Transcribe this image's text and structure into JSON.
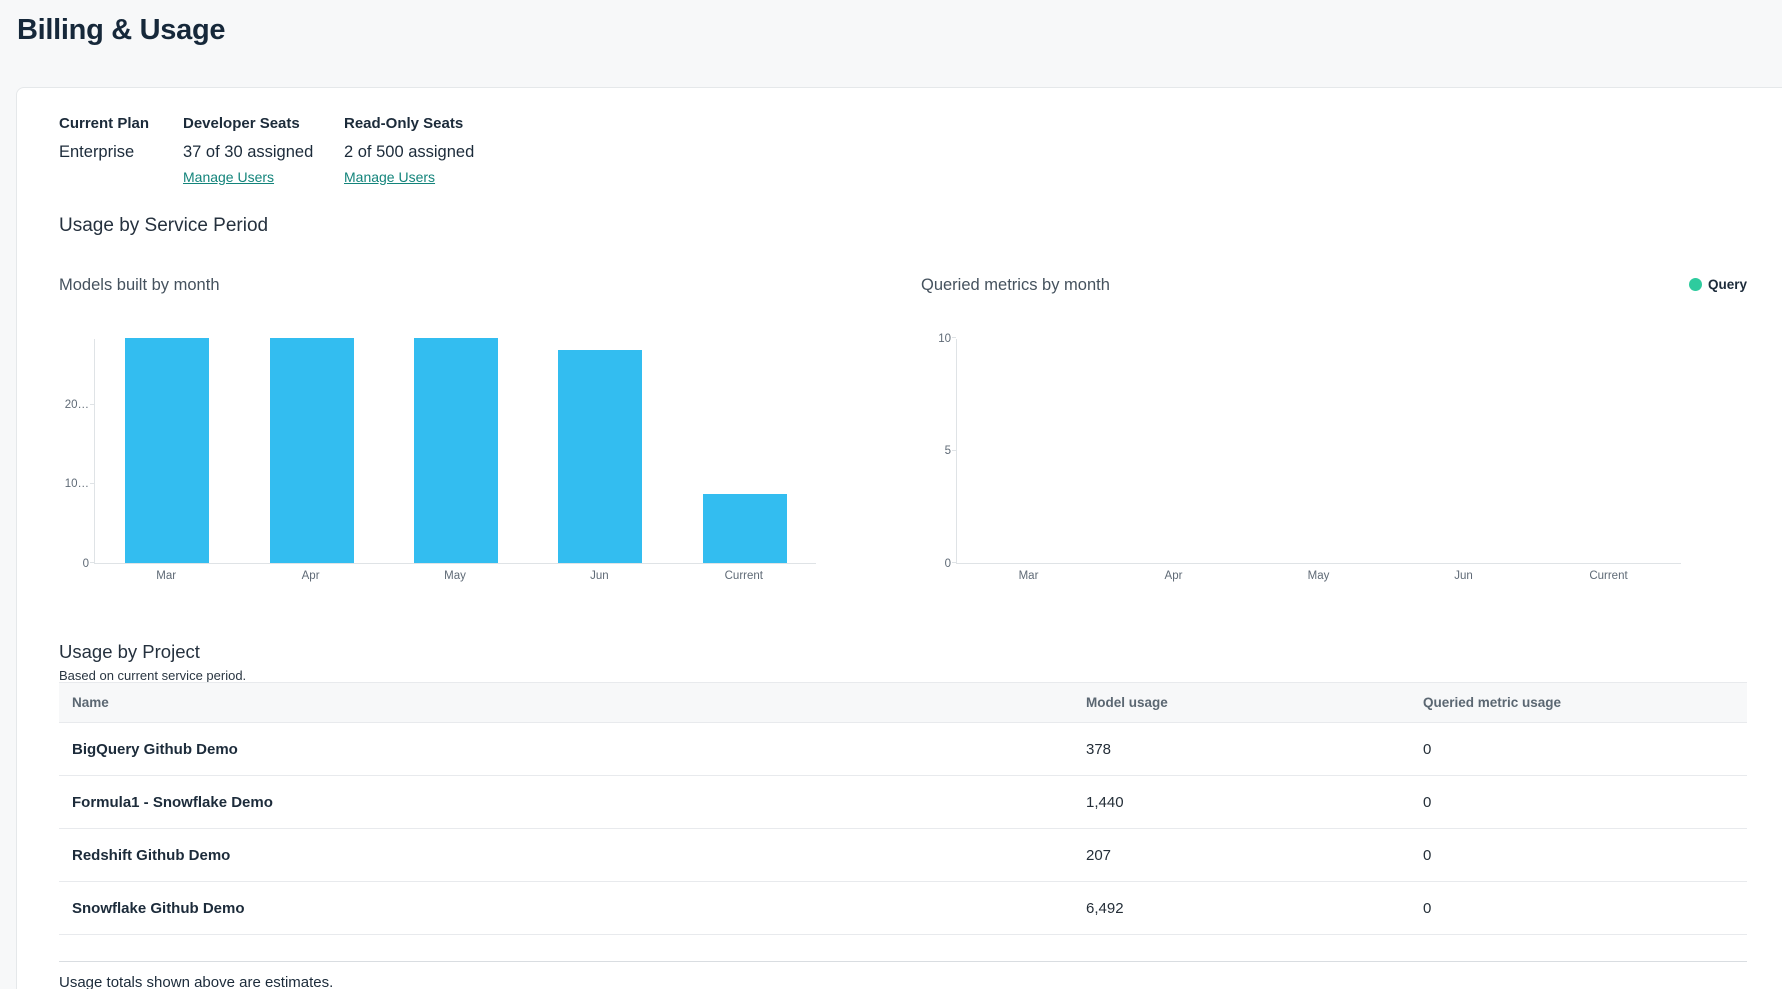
{
  "page": {
    "title": "Billing & Usage"
  },
  "plan_summary": {
    "current_plan": {
      "label": "Current Plan",
      "value": "Enterprise"
    },
    "developer_seats": {
      "label": "Developer Seats",
      "value": "37 of 30 assigned",
      "link_label": "Manage Users"
    },
    "read_only_seats": {
      "label": "Read-Only Seats",
      "value": "2 of 500 assigned",
      "link_label": "Manage Users"
    }
  },
  "sections": {
    "usage_by_service_period": "Usage by Service Period",
    "usage_by_project": {
      "title": "Usage by Project",
      "subtitle": "Based on current service period."
    }
  },
  "chart_data": [
    {
      "type": "bar",
      "title": "Models built by month",
      "categories": [
        "Mar",
        "Apr",
        "May",
        "Jun",
        "Current"
      ],
      "series": [
        {
          "name": "Models built",
          "values": [
            28400,
            28450,
            28400,
            26900,
            8700
          ]
        }
      ],
      "xlabel": "",
      "ylabel": "",
      "ylim": [
        0,
        28450
      ],
      "yticks": [
        {
          "value": 0,
          "label": "0"
        },
        {
          "value": 10000,
          "label": "10…"
        },
        {
          "value": 20000,
          "label": "20…"
        }
      ],
      "bar_color": "#33bdf0",
      "grid": false,
      "legend": null
    },
    {
      "type": "bar",
      "title": "Queried metrics by month",
      "categories": [
        "Mar",
        "Apr",
        "May",
        "Jun",
        "Current"
      ],
      "series": [
        {
          "name": "Query",
          "values": [
            0,
            0,
            0,
            0,
            0
          ]
        }
      ],
      "xlabel": "",
      "ylabel": "",
      "ylim": [
        0,
        10
      ],
      "yticks": [
        {
          "value": 0,
          "label": "0"
        },
        {
          "value": 5,
          "label": "5"
        },
        {
          "value": 10,
          "label": "10"
        }
      ],
      "bar_color": "#2ecb9e",
      "grid": false,
      "legend": {
        "label": "Query",
        "color": "#2ecb9e",
        "position": "top-right"
      }
    }
  ],
  "usage_table": {
    "columns": [
      "Name",
      "Model usage",
      "Queried metric usage"
    ],
    "rows": [
      [
        "BigQuery Github Demo",
        "378",
        "0"
      ],
      [
        "Formula1 - Snowflake Demo",
        "1,440",
        "0"
      ],
      [
        "Redshift Github Demo",
        "207",
        "0"
      ],
      [
        "Snowflake Github Demo",
        "6,492",
        "0"
      ]
    ]
  },
  "footer": {
    "note": "Usage totals shown above are estimates."
  },
  "colors": {
    "bar_blue": "#33bdf0",
    "legend_green": "#2ecb9e",
    "link_teal": "#13847b",
    "page_bg": "#f7f8f9"
  }
}
